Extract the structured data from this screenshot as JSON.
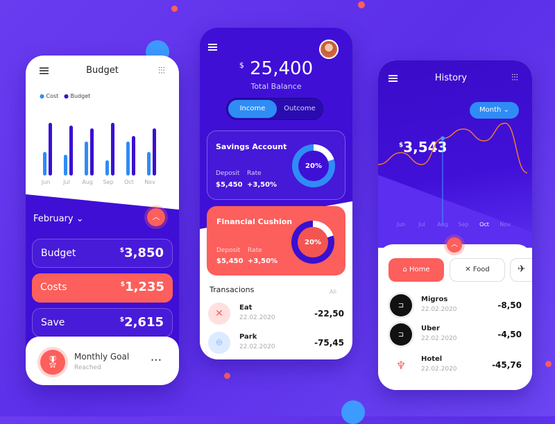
{
  "colors": {
    "background": "#5b2ee8",
    "accent_red": "#fc5f5c",
    "cost_blue": "#2f8cf5",
    "budget_indigo": "#3a0fd0",
    "orange_line": "#f07a2c"
  },
  "budget": {
    "title": "Budget",
    "menu_icon": "hamburger-icon",
    "filter_icon": "sliders-icon",
    "chart_data": {
      "type": "bar",
      "categories": [
        "Jun",
        "Jul",
        "Aug",
        "Sep",
        "Oct",
        "Nov"
      ],
      "series": [
        {
          "name": "Cost",
          "values": [
            34,
            30,
            49,
            22,
            49,
            34
          ]
        },
        {
          "name": "Budget",
          "values": [
            76,
            72,
            68,
            76,
            57,
            68
          ]
        }
      ]
    },
    "month": "February",
    "rows": [
      {
        "label": "Budget",
        "currency": "$",
        "value": "3,850"
      },
      {
        "label": "Costs",
        "currency": "$",
        "value": "1,235"
      },
      {
        "label": "Save",
        "currency": "$",
        "value": "2,615"
      }
    ],
    "goal": {
      "title": "Monthly Goal",
      "status": "Reached",
      "more": "•••"
    }
  },
  "balance": {
    "currency": "$",
    "amount": "25,400",
    "label": "Total Balance",
    "tabs": [
      {
        "label": "Income",
        "active": true
      },
      {
        "label": "Outcome",
        "active": false
      }
    ],
    "savings": {
      "title": "Savings Account",
      "deposit_label": "Deposit",
      "deposit": "$5,450",
      "rate_label": "Rate",
      "rate": "+3,50%",
      "percent_label": "20%",
      "percent": 20
    },
    "cushion": {
      "title": "Financial Cushion",
      "deposit_label": "Deposit",
      "deposit": "$5,450",
      "rate_label": "Rate",
      "rate": "+3,50%",
      "percent_label": "20%",
      "percent": 20
    },
    "transactions_title": "Transacions",
    "all_label": "All",
    "transactions": [
      {
        "name": "Eat",
        "date": "22.02.2020",
        "amount": "-22,50",
        "icon": "fork-knife-icon"
      },
      {
        "name": "Park",
        "date": "22.02.2020",
        "amount": "-75,45",
        "icon": "location-pin-icon"
      }
    ]
  },
  "history": {
    "title": "History",
    "period": "Month",
    "currency": "$",
    "amount": "3,543",
    "chart_data": {
      "type": "line",
      "categories": [
        "Jun",
        "Jul",
        "Aug",
        "Sep",
        "Oct",
        "Nov"
      ],
      "values": [
        3300,
        3100,
        3543,
        3700,
        3500,
        3800
      ],
      "highlighted": "Aug",
      "active_label": "Oct"
    },
    "categories": [
      {
        "label": "Home",
        "icon": "home-icon",
        "active": true
      },
      {
        "label": "Food",
        "icon": "fork-knife-icon",
        "active": false
      },
      {
        "label": "",
        "icon": "airplane-icon",
        "active": false
      }
    ],
    "items": [
      {
        "name": "Migros",
        "date": "22.02.2020",
        "amount": "-8,50",
        "icon": "uber-icon"
      },
      {
        "name": "Uber",
        "date": "22.02.2020",
        "amount": "-4,50",
        "icon": "uber-icon"
      },
      {
        "name": "Hotel",
        "date": "22.02.2020",
        "amount": "-45,76",
        "icon": "airbnb-icon"
      }
    ]
  }
}
